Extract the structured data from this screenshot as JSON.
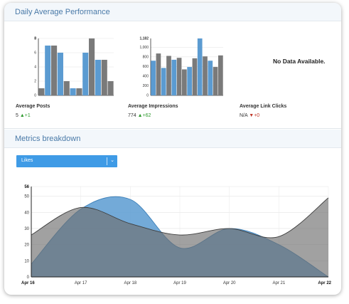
{
  "sections": {
    "daily_title": "Daily Average Performance",
    "breakdown_title": "Metrics breakdown"
  },
  "metrics": [
    {
      "label": "Average Posts",
      "value": "5",
      "delta_dir": "up",
      "delta": "+1"
    },
    {
      "label": "Average Impressions",
      "value": "774",
      "delta_dir": "up",
      "delta": "+62"
    },
    {
      "label": "Average Link Clicks",
      "value": "N/A",
      "delta_dir": "down",
      "delta": "+0"
    }
  ],
  "no_data_text": "No Data Available.",
  "metric_select": {
    "selected": "Likes"
  },
  "icons": {
    "up": "triangle-up-icon",
    "down": "triangle-down-icon",
    "dropdown": "chevron-down-icon"
  },
  "colors": {
    "blue": "#5b9bd1",
    "gray": "#7a7a7a",
    "accent": "#3f9be6",
    "header": "#4a7aa8"
  },
  "chart_data": [
    {
      "type": "bar",
      "ymax_label": "8",
      "yticks": [
        "0",
        "2",
        "4",
        "6",
        "8"
      ],
      "ylim": [
        0,
        8
      ],
      "series": [
        {
          "values": [
            1,
            7,
            6,
            1,
            6,
            5
          ]
        },
        {
          "values": [
            1,
            7,
            2,
            1,
            8,
            5,
            2
          ]
        }
      ],
      "order": [
        [
          1,
          0
        ],
        [
          0,
          1
        ],
        [
          1,
          1
        ],
        [
          0,
          2
        ],
        [
          1,
          2
        ],
        [
          0,
          3
        ],
        [
          1,
          3
        ],
        [
          0,
          4
        ],
        [
          1,
          4
        ],
        [
          0,
          5
        ],
        [
          1,
          5
        ],
        [
          1,
          6
        ]
      ]
    },
    {
      "type": "bar",
      "ymax_label": "1,182",
      "yticks": [
        "0",
        "200",
        "400",
        "600",
        "800",
        "1,000"
      ],
      "ylim": [
        0,
        1182
      ],
      "series": [
        {
          "values": [
            720,
            570,
            740,
            590,
            1182,
            720
          ]
        },
        {
          "values": [
            870,
            820,
            780,
            540,
            770,
            810,
            590,
            830
          ]
        }
      ],
      "order": [
        [
          0,
          0
        ],
        [
          1,
          0
        ],
        [
          0,
          1
        ],
        [
          1,
          1
        ],
        [
          0,
          2
        ],
        [
          1,
          2
        ],
        [
          1,
          3
        ],
        [
          0,
          3
        ],
        [
          1,
          4
        ],
        [
          0,
          4
        ],
        [
          1,
          5
        ],
        [
          0,
          5
        ],
        [
          1,
          6
        ],
        [
          1,
          7
        ]
      ]
    },
    {
      "type": "area",
      "x": [
        "Apr 16",
        "Apr 17",
        "Apr 18",
        "Apr 19",
        "Apr 20",
        "Apr 21",
        "Apr 22"
      ],
      "bold_x": [
        "Apr 16",
        "Apr 22"
      ],
      "yticks": [
        "0",
        "10",
        "20",
        "30",
        "40",
        "50",
        "56"
      ],
      "ylim": [
        0,
        56
      ],
      "series": [
        {
          "values": [
            8,
            42,
            48,
            18,
            30,
            20,
            0
          ]
        },
        {
          "values": [
            26,
            43,
            33,
            26,
            30,
            25,
            49
          ]
        }
      ]
    }
  ]
}
